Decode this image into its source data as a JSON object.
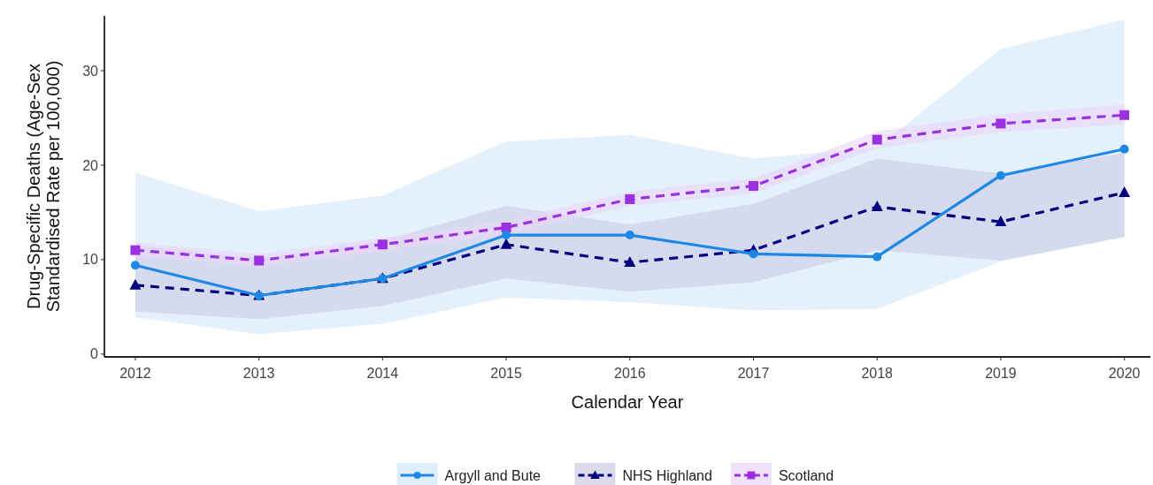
{
  "chart_data": {
    "type": "line",
    "xlabel": "Calendar Year",
    "ylabel": "Drug-Specific Deaths (Age-Sex\nStandardised Rate per 100,000)",
    "x": [
      2012,
      2013,
      2014,
      2015,
      2016,
      2017,
      2018,
      2019,
      2020
    ],
    "xlim": [
      2011.75,
      2020.21
    ],
    "xticks": [
      2012,
      2013,
      2014,
      2015,
      2016,
      2017,
      2018,
      2019,
      2020
    ],
    "ylim": [
      -0.3,
      35.8
    ],
    "yticks": [
      0,
      10,
      20,
      30
    ],
    "grid": false,
    "legend": "bottom",
    "series": [
      {
        "name": "Argyll and Bute",
        "color": "#1e88e5",
        "marker": "circle",
        "line_style": "solid",
        "values": [
          9.4,
          6.2,
          8.0,
          12.6,
          12.6,
          10.6,
          10.3,
          18.9,
          21.7
        ],
        "lower": [
          3.9,
          2.1,
          3.2,
          6.0,
          5.5,
          4.6,
          4.8,
          9.8,
          12.4
        ],
        "upper": [
          19.2,
          15.1,
          16.8,
          22.5,
          23.2,
          20.7,
          21.9,
          32.3,
          35.4
        ]
      },
      {
        "name": "NHS Highland",
        "color": "#000080",
        "marker": "triangle",
        "line_style": "dashed",
        "values": [
          7.3,
          6.2,
          8.0,
          11.6,
          9.7,
          11.0,
          15.6,
          14.0,
          17.1
        ],
        "lower": [
          4.5,
          3.7,
          5.1,
          8.0,
          6.6,
          7.6,
          11.0,
          9.9,
          12.4
        ],
        "upper": [
          11.5,
          10.1,
          12.0,
          15.7,
          13.7,
          15.9,
          20.7,
          19.1,
          21.3
        ]
      },
      {
        "name": "Scotland",
        "color": "#9b30e0",
        "marker": "square",
        "line_style": "dashed",
        "values": [
          11.0,
          9.9,
          11.6,
          13.4,
          16.4,
          17.8,
          22.7,
          24.4,
          25.3
        ],
        "lower": [
          10.3,
          9.3,
          10.9,
          12.7,
          15.7,
          17.0,
          21.8,
          23.5,
          24.3
        ],
        "upper": [
          11.8,
          10.6,
          12.3,
          14.1,
          17.2,
          18.6,
          23.6,
          25.4,
          26.4
        ]
      }
    ]
  }
}
